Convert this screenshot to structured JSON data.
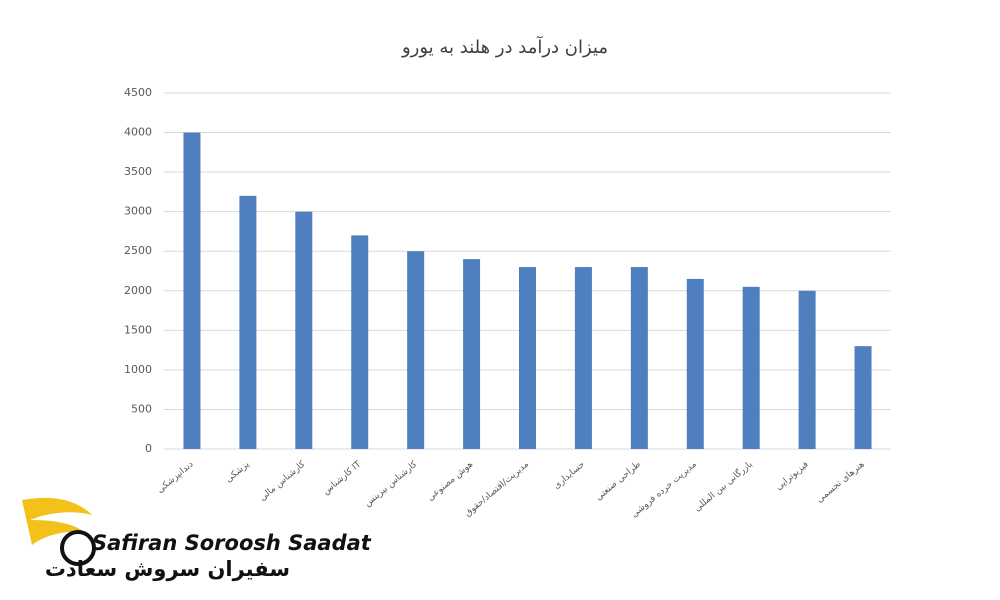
{
  "chart_data": {
    "type": "bar",
    "title": "میزان درآمد در هلند به یورو",
    "categories": [
      "دندانپزشکی",
      "پزشکی",
      "کارشناس مالی",
      "کارشناس IT",
      "کارشناس بیزینس",
      "هوش مصنوعی",
      "مدیریت/اقتصاد/حقوق",
      "حسابداری",
      "طراحی صنعتی",
      "مدیریت خرده فروشی",
      "بازرگانی بین المللی",
      "فیزیوتراپی",
      "هنرهای تجسمی"
    ],
    "values": [
      4000,
      3200,
      3000,
      2700,
      2500,
      2400,
      2300,
      2300,
      2300,
      2150,
      2050,
      2000,
      1300
    ],
    "color": "#4f7fbf",
    "ylim": [
      0,
      4500
    ],
    "yticks": [
      0,
      500,
      1000,
      1500,
      2000,
      2500,
      3000,
      3500,
      4000,
      4500
    ],
    "grid": true
  },
  "logo": {
    "name": "Safiran Soroosh Saadat",
    "name_fa": "سفیران سروش سعادت"
  }
}
